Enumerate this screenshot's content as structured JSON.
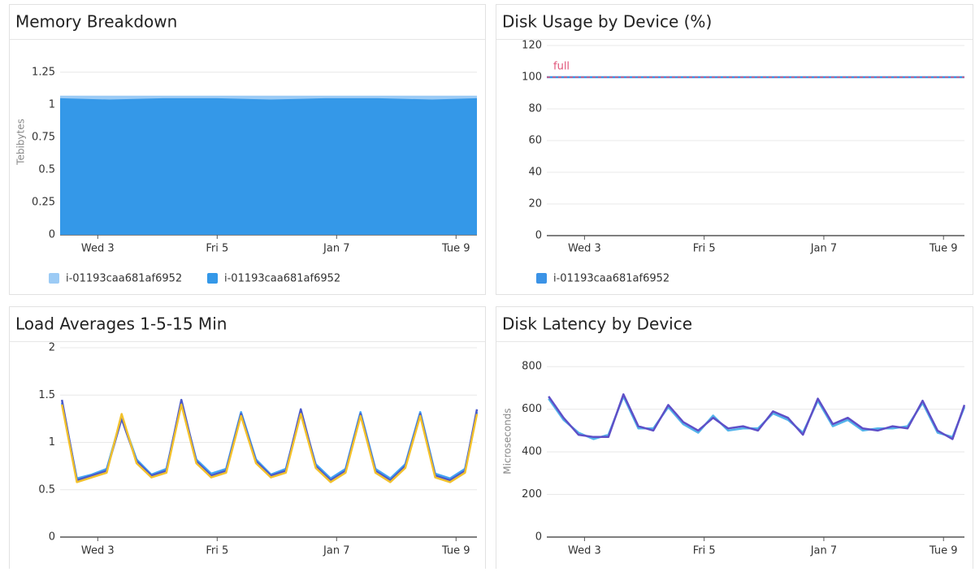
{
  "chart_data": [
    {
      "type": "area",
      "title": "Memory Breakdown",
      "y_label": "Tebibytes",
      "x": [
        0.37,
        1.2,
        2.1,
        3.0,
        3.9,
        4.8,
        5.7,
        6.6,
        7.35
      ],
      "series": [
        {
          "name": "i-01193caa681af6952",
          "color": "#9ccbf5",
          "values": [
            1.07,
            1.07,
            1.07,
            1.07,
            1.07,
            1.07,
            1.07,
            1.07,
            1.07
          ]
        },
        {
          "name": "i-01193caa681af6952",
          "color": "#3498e8",
          "values": [
            1.05,
            1.04,
            1.05,
            1.05,
            1.04,
            1.05,
            1.05,
            1.04,
            1.05
          ]
        }
      ],
      "xlim": [
        0.37,
        7.35
      ],
      "xticks": [
        {
          "value": 1,
          "label": "Wed 3"
        },
        {
          "value": 3,
          "label": "Fri 5"
        },
        {
          "value": 5,
          "label": "Jan 7"
        },
        {
          "value": 7,
          "label": "Tue 9"
        }
      ],
      "ylim": [
        0,
        1.43
      ],
      "yticks": [
        0,
        0.25,
        0.5,
        0.75,
        1,
        1.25
      ],
      "grid": true
    },
    {
      "type": "line",
      "title": "Disk Usage by Device (%)",
      "x": [
        0.37,
        7.35
      ],
      "series": [
        {
          "name": "i-01193caa681af6952",
          "color": "#3b93e6",
          "values": [
            100,
            100
          ]
        }
      ],
      "marker": {
        "value": 100,
        "label": "full",
        "color": "#e0557a"
      },
      "xlim": [
        0.37,
        7.35
      ],
      "xticks": [
        {
          "value": 1,
          "label": "Wed 3"
        },
        {
          "value": 3,
          "label": "Fri 5"
        },
        {
          "value": 5,
          "label": "Jan 7"
        },
        {
          "value": 7,
          "label": "Tue 9"
        }
      ],
      "ylim": [
        0,
        120
      ],
      "yticks": [
        0,
        20,
        40,
        60,
        80,
        100,
        120
      ],
      "grid": true
    },
    {
      "type": "line",
      "title": "Load Averages 1-5-15 Min",
      "x": [
        0.4,
        0.65,
        0.9,
        1.15,
        1.4,
        1.65,
        1.9,
        2.15,
        2.4,
        2.65,
        2.9,
        3.15,
        3.4,
        3.65,
        3.9,
        4.15,
        4.4,
        4.65,
        4.9,
        5.15,
        5.4,
        5.65,
        5.9,
        6.15,
        6.4,
        6.65,
        6.9,
        7.15,
        7.35
      ],
      "series": [
        {
          "color": "#42a5f5",
          "values": [
            1.42,
            0.62,
            0.66,
            0.72,
            1.27,
            0.82,
            0.66,
            0.72,
            1.42,
            0.82,
            0.67,
            0.72,
            1.32,
            0.82,
            0.66,
            0.72,
            1.32,
            0.77,
            0.62,
            0.72,
            1.32,
            0.72,
            0.62,
            0.77,
            1.32,
            0.67,
            0.62,
            0.72,
            1.32
          ]
        },
        {
          "color": "#4b59c9",
          "values": [
            1.45,
            0.6,
            0.65,
            0.7,
            1.25,
            0.8,
            0.65,
            0.7,
            1.45,
            0.8,
            0.65,
            0.7,
            1.3,
            0.8,
            0.65,
            0.7,
            1.35,
            0.75,
            0.6,
            0.7,
            1.3,
            0.7,
            0.6,
            0.75,
            1.3,
            0.65,
            0.6,
            0.7,
            1.35
          ]
        },
        {
          "color": "#f2c12c",
          "values": [
            1.4,
            0.58,
            0.63,
            0.68,
            1.3,
            0.78,
            0.63,
            0.68,
            1.4,
            0.78,
            0.63,
            0.68,
            1.28,
            0.78,
            0.63,
            0.68,
            1.3,
            0.73,
            0.58,
            0.68,
            1.28,
            0.68,
            0.58,
            0.73,
            1.28,
            0.63,
            0.58,
            0.68,
            1.3
          ]
        }
      ],
      "xlim": [
        0.37,
        7.35
      ],
      "xticks": [
        {
          "value": 1,
          "label": "Wed 3"
        },
        {
          "value": 3,
          "label": "Fri 5"
        },
        {
          "value": 5,
          "label": "Jan 7"
        },
        {
          "value": 7,
          "label": "Tue 9"
        }
      ],
      "ylim": [
        0,
        2
      ],
      "yticks": [
        0,
        0.5,
        1,
        1.5,
        2
      ],
      "grid": true
    },
    {
      "type": "line",
      "title": "Disk Latency by Device",
      "y_label": "Microseconds",
      "x": [
        0.4,
        0.65,
        0.9,
        1.15,
        1.4,
        1.65,
        1.9,
        2.15,
        2.4,
        2.65,
        2.9,
        3.15,
        3.4,
        3.65,
        3.9,
        4.15,
        4.4,
        4.65,
        4.9,
        5.15,
        5.4,
        5.65,
        5.9,
        6.15,
        6.4,
        6.65,
        6.9,
        7.15,
        7.35
      ],
      "series": [
        {
          "color": "#53b3ea",
          "values": [
            650,
            550,
            490,
            460,
            480,
            660,
            510,
            510,
            610,
            530,
            490,
            570,
            500,
            510,
            510,
            580,
            550,
            490,
            640,
            520,
            550,
            500,
            510,
            510,
            520,
            630,
            490,
            470,
            610
          ]
        },
        {
          "color": "#5e4fc7",
          "values": [
            660,
            560,
            480,
            470,
            470,
            670,
            520,
            500,
            620,
            540,
            500,
            560,
            510,
            520,
            500,
            590,
            560,
            480,
            650,
            530,
            560,
            510,
            500,
            520,
            510,
            640,
            500,
            460,
            620
          ]
        }
      ],
      "xlim": [
        0.37,
        7.35
      ],
      "xticks": [
        {
          "value": 1,
          "label": "Wed 3"
        },
        {
          "value": 3,
          "label": "Fri 5"
        },
        {
          "value": 5,
          "label": "Jan 7"
        },
        {
          "value": 7,
          "label": "Tue 9"
        }
      ],
      "ylim": [
        0,
        900
      ],
      "yticks": [
        0,
        200,
        400,
        600,
        800
      ],
      "grid": true
    }
  ]
}
